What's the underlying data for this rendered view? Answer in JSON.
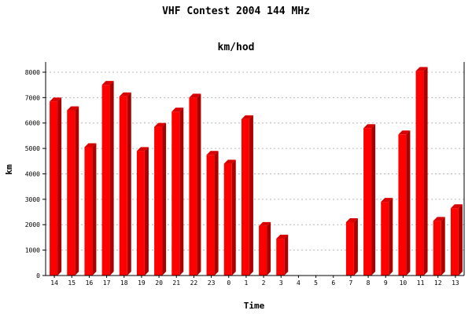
{
  "chart_data": {
    "type": "bar",
    "title": "VHF Contest 2004 144 MHz",
    "subtitle": "km/hod",
    "xlabel": "Time",
    "ylabel": "km",
    "categories": [
      "14",
      "15",
      "16",
      "17",
      "18",
      "19",
      "20",
      "21",
      "22",
      "23",
      "0",
      "1",
      "2",
      "3",
      "4",
      "5",
      "6",
      "7",
      "8",
      "9",
      "10",
      "11",
      "12",
      "13"
    ],
    "values": [
      6850,
      6500,
      5050,
      7500,
      7050,
      4900,
      5850,
      6450,
      7000,
      4750,
      4400,
      6150,
      1950,
      1450,
      0,
      0,
      0,
      2100,
      5800,
      2900,
      5550,
      8050,
      2150,
      2650
    ],
    "ylim": [
      0,
      8400
    ],
    "yticks": [
      0,
      1000,
      2000,
      3000,
      4000,
      5000,
      6000,
      7000,
      8000
    ],
    "grid": true,
    "bar_color": "#ff0000",
    "bar_side_color": "#aa0000",
    "bar_top_color": "#d80000"
  }
}
